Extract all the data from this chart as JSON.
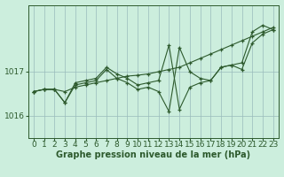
{
  "title": "Graphe pression niveau de la mer (hPa)",
  "background_color": "#cceedd",
  "grid_color": "#99bbbb",
  "line_color": "#2d5a2d",
  "xlim": [
    -0.5,
    23.5
  ],
  "ylim": [
    1015.5,
    1018.5
  ],
  "yticks": [
    1016,
    1017
  ],
  "xticks": [
    0,
    1,
    2,
    3,
    4,
    5,
    6,
    7,
    8,
    9,
    10,
    11,
    12,
    13,
    14,
    15,
    16,
    17,
    18,
    19,
    20,
    21,
    22,
    23
  ],
  "series": [
    [
      1016.55,
      1016.6,
      1016.6,
      1016.55,
      1016.65,
      1016.7,
      1016.75,
      1016.8,
      1016.85,
      1016.9,
      1016.92,
      1016.95,
      1017.0,
      1017.05,
      1017.1,
      1017.2,
      1017.3,
      1017.4,
      1017.5,
      1017.6,
      1017.7,
      1017.8,
      1017.9,
      1018.0
    ],
    [
      1016.55,
      1016.6,
      1016.6,
      1016.3,
      1016.7,
      1016.75,
      1016.8,
      1017.05,
      1016.85,
      1016.75,
      1016.6,
      1016.65,
      1016.55,
      1016.1,
      1017.55,
      1017.0,
      1016.85,
      1016.8,
      1017.1,
      1017.15,
      1017.05,
      1017.65,
      1017.85,
      1017.95
    ],
    [
      1016.55,
      1016.6,
      1016.6,
      1016.3,
      1016.75,
      1016.8,
      1016.85,
      1017.1,
      1016.95,
      1016.85,
      1016.7,
      1016.75,
      1016.8,
      1017.6,
      1016.15,
      1016.65,
      1016.75,
      1016.8,
      1017.1,
      1017.15,
      1017.2,
      1017.9,
      1018.05,
      1017.95
    ]
  ],
  "xlabel_fontsize": 6.5,
  "ylabel_fontsize": 6.5,
  "title_fontsize": 7.0,
  "tick_color": "#2d5a2d",
  "spine_color": "#2d5a2d"
}
